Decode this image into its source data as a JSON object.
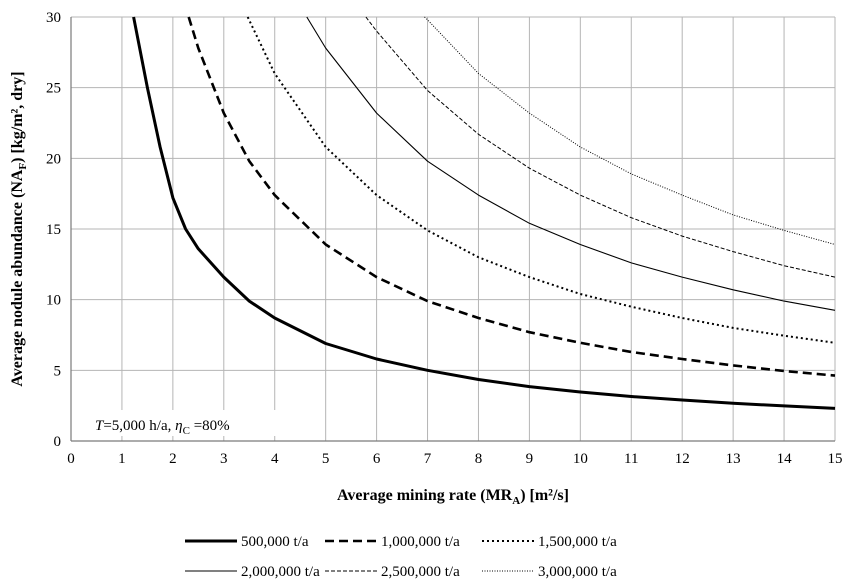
{
  "chart_data": {
    "type": "line",
    "xlabel": "Average mining rate (MR",
    "xlabel_sub": "A",
    "xlabel_tail": ") [m²/s]",
    "ylabel": "Average nodule abundance (NA",
    "ylabel_sub": "F",
    "ylabel_tail": ") [kg/m², dry]",
    "xlim": [
      0,
      15
    ],
    "ylim": [
      0,
      30
    ],
    "x_ticks": [
      0,
      1,
      2,
      3,
      4,
      5,
      6,
      7,
      8,
      9,
      10,
      11,
      12,
      13,
      14,
      15
    ],
    "y_ticks": [
      0,
      5,
      10,
      15,
      20,
      25,
      30
    ],
    "grid": true,
    "legend_position": "bottom",
    "annotation": {
      "T_symbol": "T",
      "T_text": "=5,000 h/a, ",
      "eta_symbol": "η",
      "eta_sub": "C",
      "eta_text": " =80%"
    },
    "series": [
      {
        "name": "500,000 t/a",
        "style": "solid-thick",
        "x": [
          1.23,
          1.5,
          1.75,
          2.0,
          2.25,
          2.5,
          3.0,
          3.5,
          4.0,
          5.0,
          6.0,
          7.0,
          8.0,
          9.0,
          10.0,
          11.0,
          12.0,
          13.0,
          14.0,
          15.0
        ],
        "y": [
          30.0,
          25.0,
          20.8,
          17.2,
          15.0,
          13.6,
          11.6,
          9.9,
          8.7,
          6.9,
          5.8,
          5.0,
          4.35,
          3.85,
          3.47,
          3.15,
          2.9,
          2.67,
          2.48,
          2.31
        ]
      },
      {
        "name": "1,000,000 t/a",
        "style": "dashed-thick",
        "x": [
          2.31,
          2.5,
          3.0,
          3.5,
          4.0,
          5.0,
          6.0,
          7.0,
          8.0,
          9.0,
          10.0,
          11.0,
          12.0,
          13.0,
          14.0,
          15.0
        ],
        "y": [
          30.0,
          27.8,
          23.2,
          19.8,
          17.4,
          13.9,
          11.6,
          9.9,
          8.7,
          7.7,
          6.95,
          6.3,
          5.8,
          5.35,
          4.95,
          4.63
        ]
      },
      {
        "name": "1,500,000 t/a",
        "style": "dotted",
        "x": [
          3.47,
          4.0,
          5.0,
          6.0,
          7.0,
          8.0,
          9.0,
          10.0,
          11.0,
          12.0,
          13.0,
          14.0,
          15.0
        ],
        "y": [
          30.0,
          26.0,
          20.8,
          17.4,
          14.9,
          13.0,
          11.6,
          10.4,
          9.5,
          8.7,
          8.0,
          7.45,
          6.95
        ]
      },
      {
        "name": "2,000,000 t/a",
        "style": "solid-thin",
        "x": [
          4.63,
          5.0,
          6.0,
          7.0,
          8.0,
          9.0,
          10.0,
          11.0,
          12.0,
          13.0,
          14.0,
          15.0
        ],
        "y": [
          30.0,
          27.8,
          23.2,
          19.8,
          17.4,
          15.4,
          13.9,
          12.6,
          11.6,
          10.7,
          9.9,
          9.25
        ]
      },
      {
        "name": "2,500,000 t/a",
        "style": "dashed-thin",
        "x": [
          5.79,
          6.0,
          7.0,
          8.0,
          9.0,
          10.0,
          11.0,
          12.0,
          13.0,
          14.0,
          15.0
        ],
        "y": [
          30.0,
          29.0,
          24.8,
          21.7,
          19.3,
          17.4,
          15.8,
          14.5,
          13.4,
          12.4,
          11.6
        ]
      },
      {
        "name": "3,000,000 t/a",
        "style": "dotted-thin",
        "x": [
          6.94,
          7.0,
          8.0,
          9.0,
          10.0,
          11.0,
          12.0,
          13.0,
          14.0,
          15.0
        ],
        "y": [
          30.0,
          29.8,
          26.0,
          23.2,
          20.8,
          18.9,
          17.4,
          16.0,
          14.9,
          13.9
        ]
      }
    ]
  }
}
